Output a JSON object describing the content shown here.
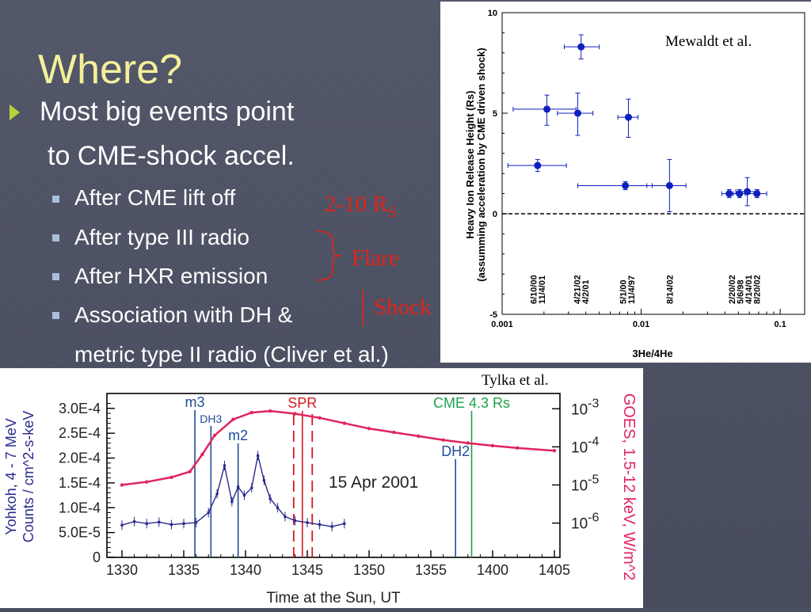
{
  "slide": {
    "title": "Where?",
    "bullet_main_line1": "Most big events point",
    "bullet_main_line2": "to CME-shock accel.",
    "sub_bullets": [
      "After CME lift off",
      "After type III radio",
      "After HXR emission",
      "Association with DH &"
    ],
    "sub_bullet_cont": "metric type II radio (Cliver et al.)",
    "annotations": {
      "range": "2-10 R",
      "range_sub": "S",
      "flare": "Flare",
      "shock": "Shock"
    },
    "credits": {
      "mewaldt": "Mewaldt et al.",
      "tylka": "Tylka et al."
    }
  },
  "colors": {
    "title": "#f4f09a",
    "bullet_arrow": "#b8d23c",
    "annotation": "#e2231a",
    "goes": "#e0245e",
    "yohkoh": "#2a2a8c",
    "marker_blue": "#1f4e9b",
    "marker_red": "#d71920",
    "marker_green": "#1ea14a",
    "point": "#0d1fbf"
  },
  "chart_data": [
    {
      "type": "scatter",
      "xscale": "log",
      "xlim": [
        0.001,
        0.15
      ],
      "ylim": [
        -5,
        10
      ],
      "xticks": [
        "0.001",
        "0.01",
        "0.1"
      ],
      "yticks": [
        "-5",
        "0",
        "5",
        "10"
      ],
      "xlabel": "3He/4He",
      "ylabel_line1": "Heavy Ion Release Height (Rs)",
      "ylabel_line2": "(assumming acceleration by CME driven shock)",
      "reference_line_y": 0,
      "points": [
        {
          "x": 0.0018,
          "y": 2.4,
          "xerr": [
            0.0011,
            0.0029
          ],
          "yerr": [
            2.1,
            2.7
          ]
        },
        {
          "x": 0.0021,
          "y": 5.2,
          "xerr": [
            0.0012,
            0.0034
          ],
          "yerr": [
            4.4,
            5.9
          ]
        },
        {
          "x": 0.0037,
          "y": 8.3,
          "xerr": [
            0.0028,
            0.005
          ],
          "yerr": [
            7.7,
            8.9
          ]
        },
        {
          "x": 0.0035,
          "y": 5.0,
          "xerr": [
            0.0025,
            0.0045
          ],
          "yerr": [
            3.9,
            6.0
          ]
        },
        {
          "x": 0.0081,
          "y": 4.8,
          "xerr": [
            0.0068,
            0.0095
          ],
          "yerr": [
            3.8,
            5.7
          ]
        },
        {
          "x": 0.0077,
          "y": 1.4,
          "xerr": [
            0.0035,
            0.012
          ],
          "yerr": [
            1.2,
            1.6
          ]
        },
        {
          "x": 0.016,
          "y": 1.4,
          "xerr": [
            0.011,
            0.021
          ],
          "yerr": [
            0.1,
            2.7
          ]
        },
        {
          "x": 0.043,
          "y": 1.0,
          "xerr": [
            0.038,
            0.05
          ],
          "yerr": [
            0.8,
            1.2
          ]
        },
        {
          "x": 0.051,
          "y": 1.0,
          "xerr": [
            0.046,
            0.056
          ],
          "yerr": [
            0.8,
            1.2
          ]
        },
        {
          "x": 0.058,
          "y": 1.1,
          "xerr": [
            0.048,
            0.07
          ],
          "yerr": [
            0.4,
            1.8
          ]
        },
        {
          "x": 0.068,
          "y": 1.0,
          "xerr": [
            0.058,
            0.08
          ],
          "yerr": [
            0.8,
            1.2
          ]
        }
      ],
      "event_labels": [
        {
          "x": 0.0018,
          "lines": [
            "6/10/00",
            "11/4/01"
          ]
        },
        {
          "x": 0.0037,
          "lines": [
            "4/21/02",
            "4/2/01"
          ]
        },
        {
          "x": 0.0079,
          "lines": [
            "5/1/00",
            "11/4/97"
          ]
        },
        {
          "x": 0.016,
          "lines": [
            "8/14/02"
          ]
        },
        {
          "x": 0.055,
          "lines": [
            "2/20/02",
            "5/6/98",
            "4/14/01",
            "8/20/02"
          ]
        }
      ]
    },
    {
      "type": "line",
      "title": "15 Apr 2001",
      "xlabel": "Time at the Sun, UT",
      "ylabel_left_line1": "Yohkoh, 4 - 7 MeV",
      "ylabel_left_line2": "Counts / cm^2-s-keV",
      "ylabel_right": "GOES, 1.5-12 keV, W/m^2",
      "xticks": [
        "1330",
        "1335",
        "1340",
        "1345",
        "1350",
        "1355",
        "1400",
        "1405"
      ],
      "yticks_left": [
        "0",
        "5.0E-5",
        "1.0E-4",
        "1.5E-4",
        "2.0E-4",
        "2.5E-4",
        "3.0E-4"
      ],
      "yticks_right": [
        {
          "base": "10",
          "exp": "-6"
        },
        {
          "base": "10",
          "exp": "-5"
        },
        {
          "base": "10",
          "exp": "-4"
        },
        {
          "base": "10",
          "exp": "-3"
        }
      ],
      "ylim_left": [
        0,
        0.00033
      ],
      "ylim_right_log10": [
        -6.9,
        -2.6
      ],
      "markers": [
        {
          "label": "m3",
          "t": 1335.9,
          "color": "marker_blue"
        },
        {
          "label": "DH3",
          "t": 1337.2,
          "color": "marker_blue"
        },
        {
          "label": "m2",
          "t": 1339.4,
          "color": "marker_blue"
        },
        {
          "label": "SPR",
          "t": 1344.6,
          "color": "marker_red"
        },
        {
          "label": "DH2",
          "t": 1357,
          "color": "marker_blue"
        },
        {
          "label": "CME 4.3 Rs",
          "t": 1358.3,
          "color": "marker_green"
        }
      ],
      "dashed_markers_t": [
        1343.9,
        1345.4
      ],
      "series": [
        {
          "name": "GOES, 1.5-12 keV",
          "t": [
            1330,
            1332,
            1334,
            1335.5,
            1336.5,
            1337.5,
            1339,
            1340.5,
            1342,
            1344,
            1346,
            1348,
            1350,
            1352,
            1354,
            1356,
            1358,
            1360,
            1362,
            1365
          ],
          "log10_flux": [
            -5.0,
            -4.92,
            -4.8,
            -4.65,
            -4.2,
            -3.7,
            -3.28,
            -3.1,
            -3.06,
            -3.13,
            -3.24,
            -3.38,
            -3.52,
            -3.62,
            -3.72,
            -3.82,
            -3.9,
            -3.97,
            -4.03,
            -4.1
          ]
        },
        {
          "name": "Yohkoh, 4 - 7 MeV",
          "t": [
            1330,
            1331,
            1332,
            1333,
            1334,
            1335,
            1336,
            1337,
            1337.7,
            1338.3,
            1338.9,
            1339.4,
            1339.9,
            1340.5,
            1341.0,
            1341.5,
            1342.0,
            1342.6,
            1343.2,
            1344.0,
            1345.0,
            1346.0,
            1347.0,
            1348.0
          ],
          "values": [
            6.5e-05,
            7.2e-05,
            6.8e-05,
            7.1e-05,
            6.6e-05,
            6.8e-05,
            7e-05,
            9e-05,
            0.000128,
            0.000185,
            0.000112,
            0.000142,
            0.000125,
            0.00014,
            0.000205,
            0.000155,
            0.000118,
            0.0001,
            8.2e-05,
            7.4e-05,
            7e-05,
            6.6e-05,
            6.2e-05,
            6.8e-05
          ]
        }
      ]
    }
  ]
}
